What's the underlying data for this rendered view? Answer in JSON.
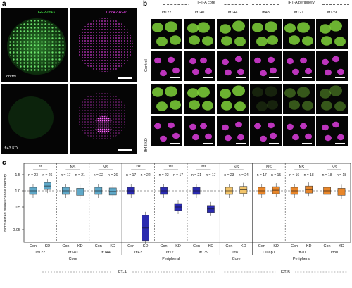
{
  "panel_a": {
    "label": "a",
    "top_left_channel": "GFP-Ift43",
    "top_right_channel": "Cdc42-RFP",
    "top_condition": "Control",
    "bottom_condition": "Ift43 KD"
  },
  "panel_b": {
    "label": "b",
    "group_core": "IFT-A core",
    "group_periphery": "IFT-A periphery",
    "columns": [
      "Ift122",
      "Ift140",
      "Ift144",
      "Ift43",
      "Ift121",
      "Ift139"
    ],
    "rows": [
      "Control",
      "Ift43 KD"
    ]
  },
  "panel_c": {
    "label": "c",
    "y_axis_label": "Normalized fluorescence intensity",
    "groups": [
      {
        "protein": "Ift122",
        "sig": "**",
        "n_con": "n = 23",
        "n_kd": "n = 26",
        "color": "#5fa8c8",
        "category": "Core"
      },
      {
        "protein": "Ift140",
        "sig": "NS",
        "n_con": "n = 17",
        "n_kd": "n = 21",
        "color": "#5fa8c8",
        "category": "Core"
      },
      {
        "protein": "Ift144",
        "sig": "NS",
        "n_con": "n = 22",
        "n_kd": "n = 26",
        "color": "#5fa8c8",
        "category": "Core"
      },
      {
        "protein": "Ift43",
        "sig": "***",
        "n_con": "n = 17",
        "n_kd": "n = 22",
        "color": "#2a2ab0",
        "category": "Peripheral"
      },
      {
        "protein": "Ift121",
        "sig": "***",
        "n_con": "n = 22",
        "n_kd": "n = 17",
        "color": "#2a2ab0",
        "category": "Peripheral"
      },
      {
        "protein": "Ift139",
        "sig": "***",
        "n_con": "n = 21",
        "n_kd": "n = 17",
        "color": "#2a2ab0",
        "category": "Peripheral"
      },
      {
        "protein": "Ift81",
        "sig": "NS",
        "n_con": "n = 23",
        "n_kd": "n = 24",
        "color": "#f2c46a",
        "category": "Core"
      },
      {
        "protein": "Cluap1",
        "sig": "NS",
        "n_con": "n = 17",
        "n_kd": "n = 15",
        "color": "#e8862a",
        "category": "Peripheral"
      },
      {
        "protein": "Ift20",
        "sig": "NS",
        "n_con": "n = 16",
        "n_kd": "n = 18",
        "color": "#e8862a",
        "category": "Peripheral"
      },
      {
        "protein": "Ift80",
        "sig": "NS",
        "n_con": "n = 18",
        "n_kd": "n = 18",
        "color": "#e8862a",
        "category": "Peripheral"
      }
    ],
    "con_label": "Con",
    "kd_label": "KD",
    "categories": {
      "core": "Core",
      "peripheral": "Peripheral"
    },
    "complex_a": "IFT-A",
    "complex_b": "IFT-B",
    "y_ticks": [
      "1.5",
      "1.0",
      "0.5",
      "0.05"
    ]
  },
  "chart_data": {
    "type": "box",
    "ylabel": "Normalized fluorescence intensity",
    "y_ticks": [
      1.5,
      1.0,
      0.5,
      0.05
    ],
    "series": [
      {
        "name": "Con",
        "values": [
          1.0,
          1.0,
          1.0,
          1.0,
          1.0,
          1.0,
          1.0,
          1.0,
          1.0,
          1.0
        ]
      },
      {
        "name": "KD",
        "values": [
          1.15,
          0.97,
          0.98,
          0.08,
          0.5,
          0.46,
          1.03,
          1.02,
          1.04,
          0.97
        ]
      }
    ],
    "categories": [
      "Ift122",
      "Ift140",
      "Ift144",
      "Ift43",
      "Ift121",
      "Ift139",
      "Ift81",
      "Cluap1",
      "Ift20",
      "Ift80"
    ]
  }
}
